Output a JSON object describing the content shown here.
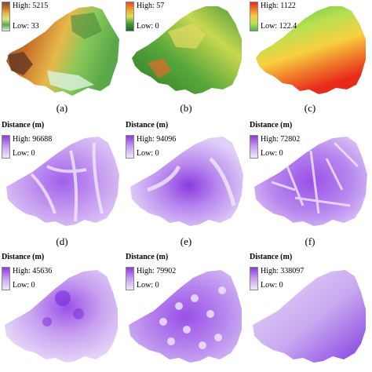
{
  "panels": [
    {
      "id": "a",
      "caption": "(a)",
      "legend_title": "",
      "high": "High: 5215",
      "low": "Low: 33",
      "ramp": [
        "#7a4a2c",
        "#c8722a",
        "#e8b84a",
        "#d8e88a",
        "#5aa84a",
        "#d8f0d8"
      ],
      "style": "elevation"
    },
    {
      "id": "b",
      "caption": "(b)",
      "legend_title": "",
      "high": "High: 57",
      "low": "Low: 0",
      "ramp": [
        "#e84a2a",
        "#f0a030",
        "#d8e060",
        "#4a9a3a",
        "#1a6a2a"
      ],
      "style": "vegetation"
    },
    {
      "id": "c",
      "caption": "(c)",
      "legend_title": "",
      "high": "High: 1122",
      "low": "Low: 122.4",
      "ramp": [
        "#e82a1a",
        "#f07a2a",
        "#f8d040",
        "#b8e050",
        "#4ab84a"
      ],
      "style": "precip"
    },
    {
      "id": "d",
      "caption": "(d)",
      "legend_title": "Distance (m)",
      "high": "High: 96688",
      "low": "Low: 0",
      "ramp": [
        "#8a3ae0",
        "#c8a0f0",
        "#f0e8fc"
      ],
      "style": "distance"
    },
    {
      "id": "e",
      "caption": "(e)",
      "legend_title": "Distance (m)",
      "high": "High: 94096",
      "low": "Low: 0",
      "ramp": [
        "#8a3ae0",
        "#c8a0f0",
        "#f0e8fc"
      ],
      "style": "distance"
    },
    {
      "id": "f",
      "caption": "(f)",
      "legend_title": "Distance (m)",
      "high": "High: 72802",
      "low": "Low: 0",
      "ramp": [
        "#8a3ae0",
        "#c8a0f0",
        "#f0e8fc"
      ],
      "style": "distance"
    },
    {
      "id": "g",
      "caption": "",
      "legend_title": "Distance (m)",
      "high": "High: 45636",
      "low": "Low: 0",
      "ramp": [
        "#8a3ae0",
        "#c8a0f0",
        "#f0e8fc"
      ],
      "style": "distance"
    },
    {
      "id": "h",
      "caption": "",
      "legend_title": "Distance (m)",
      "high": "High: 79902",
      "low": "Low: 0",
      "ramp": [
        "#8a3ae0",
        "#c8a0f0",
        "#f0e8fc"
      ],
      "style": "distance"
    },
    {
      "id": "i",
      "caption": "",
      "legend_title": "Distance (m)",
      "high": "High: 338097",
      "low": "Low: 0",
      "ramp": [
        "#8a3ae0",
        "#c8a0f0",
        "#f0e8fc"
      ],
      "style": "distance"
    }
  ]
}
